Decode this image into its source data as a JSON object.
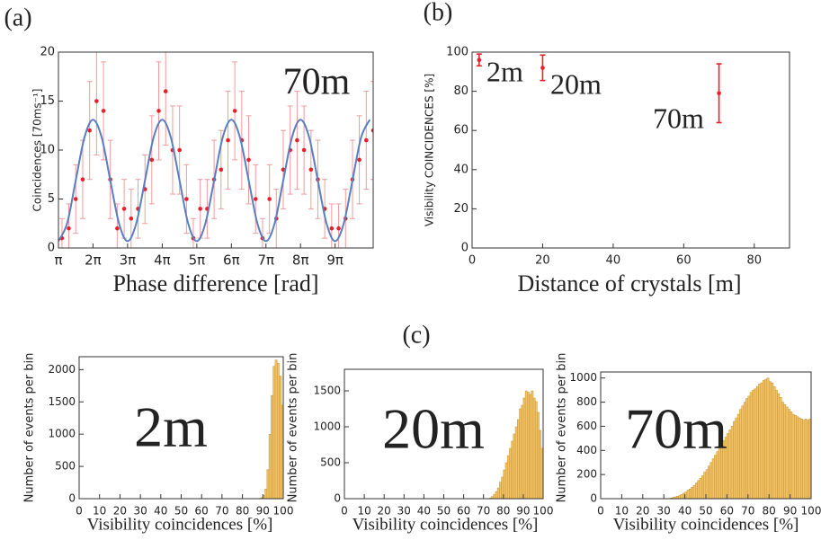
{
  "panel_label": "(c)",
  "chart_data": [
    {
      "type": "scatter",
      "panel_label": "(a)",
      "annotation": "70m",
      "xlabel": "Phase difference [rad]",
      "ylabel": "Coincidences [70ms⁻¹]",
      "xlim": [
        3.14,
        31.73
      ],
      "ylim": [
        0,
        20
      ],
      "xticks": [
        {
          "value": 3.14,
          "label": "π"
        },
        {
          "value": 6.28,
          "label": "2π"
        },
        {
          "value": 9.42,
          "label": "3π"
        },
        {
          "value": 12.57,
          "label": "4π"
        },
        {
          "value": 15.71,
          "label": "5π"
        },
        {
          "value": 18.85,
          "label": "6π"
        },
        {
          "value": 21.99,
          "label": "7π"
        },
        {
          "value": 25.13,
          "label": "8π"
        },
        {
          "value": 28.27,
          "label": "9π"
        }
      ],
      "yticks": [
        0,
        5,
        10,
        15,
        20
      ],
      "series": [
        {
          "color": "#e8202a",
          "error_color": "#f29a9a",
          "x": [
            3.46,
            4.08,
            4.71,
            5.34,
            5.97,
            6.6,
            7.23,
            7.85,
            8.48,
            9.11,
            9.74,
            10.37,
            11.0,
            11.62,
            12.25,
            12.88,
            13.51,
            14.14,
            14.77,
            15.39,
            16.02,
            16.65,
            17.28,
            17.91,
            18.54,
            19.16,
            19.79,
            20.42,
            21.05,
            21.68,
            22.31,
            22.93,
            23.56,
            24.19,
            24.82,
            25.45,
            26.08,
            26.7,
            27.33,
            27.96,
            28.59,
            29.22,
            29.85,
            30.47,
            31.1,
            31.73
          ],
          "values": [
            1,
            2,
            5,
            7,
            12,
            15,
            14,
            7,
            2,
            4,
            3,
            4,
            6,
            9,
            14,
            16,
            10,
            10,
            5,
            1,
            4,
            4,
            7,
            8,
            11,
            14,
            11,
            9,
            5,
            1,
            5,
            3,
            8,
            10,
            11,
            10,
            8,
            7,
            4,
            2,
            2,
            3,
            7,
            9,
            11,
            12
          ],
          "errors": [
            2,
            2.5,
            3.5,
            4,
            5,
            5.5,
            5,
            4,
            2.5,
            3,
            3,
            3,
            3.5,
            4.5,
            5,
            5.5,
            4.5,
            4.5,
            3.5,
            2,
            3,
            3,
            4,
            4,
            5,
            5,
            5,
            4.5,
            3.5,
            2,
            3.5,
            3,
            4,
            4.5,
            5,
            4.5,
            4,
            4,
            3,
            2.5,
            2.5,
            3,
            4,
            4.5,
            5,
            5
          ]
        },
        {
          "type": "line",
          "color": "#5a7fc0",
          "x": [
            3.14,
            3.93,
            4.71,
            5.5,
            6.28,
            7.07,
            7.85,
            8.64,
            9.42,
            10.21,
            11.0,
            11.78,
            12.57,
            13.35,
            14.14,
            14.92,
            15.71,
            16.49,
            17.28,
            18.06,
            18.85,
            19.63,
            20.42,
            21.21,
            21.99,
            22.78,
            23.56,
            24.35,
            25.13,
            25.92,
            26.7,
            27.49,
            28.27,
            29.06,
            29.85,
            30.63,
            31.42
          ],
          "values": [
            0.7,
            2.52,
            6.9,
            11.28,
            13.1,
            11.28,
            6.9,
            2.52,
            0.7,
            2.52,
            6.9,
            11.28,
            13.1,
            11.28,
            6.9,
            2.52,
            0.7,
            2.52,
            6.9,
            11.28,
            13.1,
            11.28,
            6.9,
            2.52,
            0.7,
            2.52,
            6.9,
            11.28,
            13.1,
            11.28,
            6.9,
            2.52,
            0.7,
            2.52,
            6.9,
            11.28,
            13.1
          ]
        }
      ]
    },
    {
      "type": "scatter",
      "panel_label": "(b)",
      "annotations": [
        "2m",
        "20m",
        "70m"
      ],
      "xlabel": "Distance of crystals [m]",
      "ylabel": "Visibility COINCIDENCES [%]",
      "xlim": [
        0,
        90
      ],
      "ylim": [
        0,
        100
      ],
      "xticks": [
        0,
        20,
        40,
        60,
        80
      ],
      "yticks": [
        0,
        20,
        40,
        60,
        80,
        100
      ],
      "series": [
        {
          "color": "#e8202a",
          "error_color": "#e8202a",
          "x": [
            2,
            20,
            70
          ],
          "values": [
            96,
            92,
            79
          ],
          "errors": [
            3,
            6.5,
            15
          ]
        }
      ]
    },
    {
      "type": "histogram",
      "annotation": "2m",
      "color": "#f2c468",
      "edge": "#c98f2a",
      "xlabel": "Visibility coincidences [%]",
      "ylabel": "Number of events per bin",
      "xlim": [
        0,
        100
      ],
      "ylim": [
        0,
        2200
      ],
      "xticks": [
        0,
        10,
        20,
        30,
        40,
        50,
        60,
        70,
        80,
        90,
        100
      ],
      "yticks": [
        0,
        500,
        1000,
        1500,
        2000
      ],
      "bins": [
        88,
        89,
        90,
        91,
        92,
        93,
        94,
        95,
        96,
        97,
        98,
        99,
        100
      ],
      "values": [
        5,
        15,
        50,
        150,
        450,
        1000,
        1600,
        2050,
        2150,
        2100,
        1900,
        1450
      ]
    },
    {
      "type": "histogram",
      "annotation": "20m",
      "color": "#f2c468",
      "edge": "#c98f2a",
      "xlabel": "Visibility coincidences [%]",
      "ylabel": "Number of events per bin",
      "xlim": [
        0,
        100
      ],
      "ylim": [
        0,
        1800
      ],
      "xticks": [
        0,
        10,
        20,
        30,
        40,
        50,
        60,
        70,
        80,
        90,
        100
      ],
      "yticks": [
        0,
        500,
        1000,
        1500
      ],
      "bins": [
        73,
        74,
        75,
        76,
        77,
        78,
        79,
        80,
        81,
        82,
        83,
        84,
        85,
        86,
        87,
        88,
        89,
        90,
        91,
        92,
        93,
        94,
        95,
        96,
        97,
        98,
        99,
        100
      ],
      "values": [
        10,
        30,
        60,
        100,
        150,
        230,
        300,
        400,
        500,
        600,
        700,
        800,
        900,
        1000,
        1100,
        1250,
        1300,
        1400,
        1500,
        1480,
        1450,
        1500,
        1400,
        1350,
        1200,
        950,
        700
      ]
    },
    {
      "type": "histogram",
      "annotation": "70m",
      "color": "#f2c468",
      "edge": "#c98f2a",
      "xlabel": "Visibility coincidences [%]",
      "ylabel": "Number of events per bin",
      "xlim": [
        0,
        100
      ],
      "ylim": [
        0,
        1050
      ],
      "xticks": [
        0,
        10,
        20,
        30,
        40,
        50,
        60,
        70,
        80,
        90,
        100
      ],
      "yticks": [
        0,
        200,
        400,
        600,
        800,
        1000
      ],
      "bins": [
        33,
        34,
        35,
        36,
        37,
        38,
        39,
        40,
        41,
        42,
        43,
        44,
        45,
        46,
        47,
        48,
        49,
        50,
        51,
        52,
        53,
        54,
        55,
        56,
        57,
        58,
        59,
        60,
        61,
        62,
        63,
        64,
        65,
        66,
        67,
        68,
        69,
        70,
        71,
        72,
        73,
        74,
        75,
        76,
        77,
        78,
        79,
        80,
        81,
        82,
        83,
        84,
        85,
        86,
        87,
        88,
        89,
        90,
        91,
        92,
        93,
        94,
        95,
        96,
        97,
        98,
        99,
        100
      ],
      "values": [
        5,
        10,
        15,
        20,
        25,
        35,
        45,
        55,
        70,
        80,
        95,
        110,
        130,
        150,
        170,
        190,
        220,
        240,
        270,
        300,
        330,
        360,
        390,
        420,
        450,
        480,
        510,
        540,
        570,
        600,
        640,
        670,
        700,
        740,
        770,
        800,
        830,
        850,
        880,
        900,
        910,
        930,
        950,
        960,
        980,
        990,
        1000,
        970,
        960,
        930,
        900,
        870,
        840,
        800,
        780,
        760,
        740,
        720,
        700,
        690,
        680,
        670,
        660,
        650,
        660,
        650,
        660
      ]
    }
  ]
}
